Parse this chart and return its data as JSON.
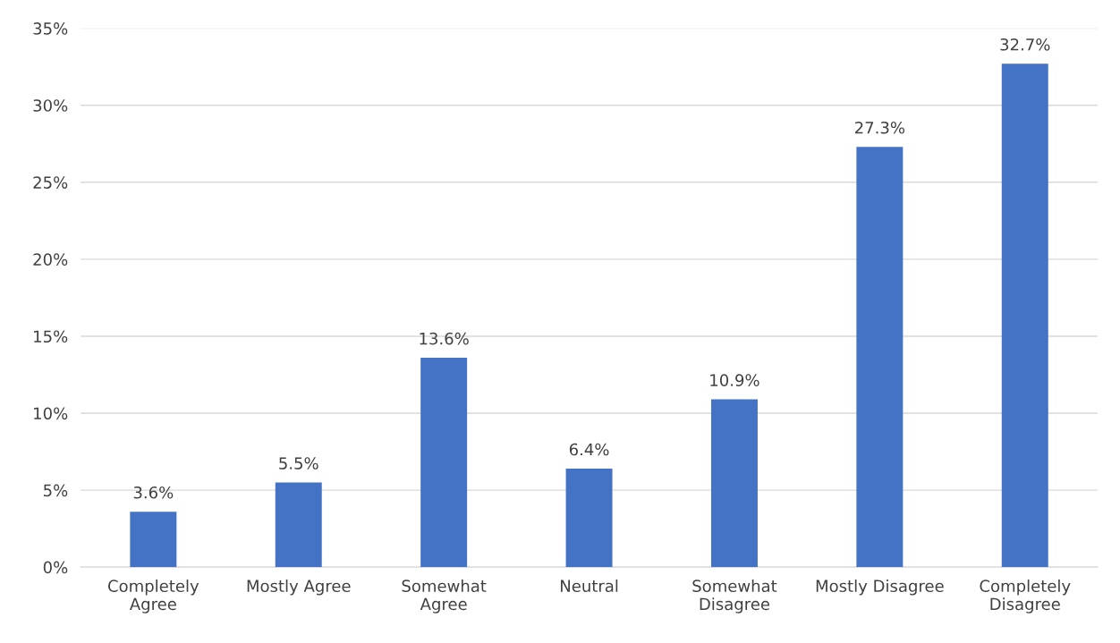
{
  "chart_data": {
    "type": "bar",
    "categories": [
      "Completely\nAgree",
      "Mostly Agree",
      "Somewhat\nAgree",
      "Neutral",
      "Somewhat\nDisagree",
      "Mostly Disagree",
      "Completely\nDisagree"
    ],
    "values": [
      3.6,
      5.5,
      13.6,
      6.4,
      10.9,
      27.3,
      32.7
    ],
    "value_labels": [
      "3.6%",
      "5.5%",
      "13.6%",
      "6.4%",
      "10.9%",
      "27.3%",
      "32.7%"
    ],
    "color": "#4472c4",
    "ylim": [
      0,
      35
    ],
    "yticks": [
      {
        "value": 0,
        "label": "0%"
      },
      {
        "value": 5,
        "label": "5%"
      },
      {
        "value": 10,
        "label": "10%"
      },
      {
        "value": 15,
        "label": "15%"
      },
      {
        "value": 20,
        "label": "20%"
      },
      {
        "value": 25,
        "label": "25%"
      },
      {
        "value": 30,
        "label": "30%"
      },
      {
        "value": 35,
        "label": "35%"
      }
    ],
    "grid": "y",
    "legend": false
  }
}
